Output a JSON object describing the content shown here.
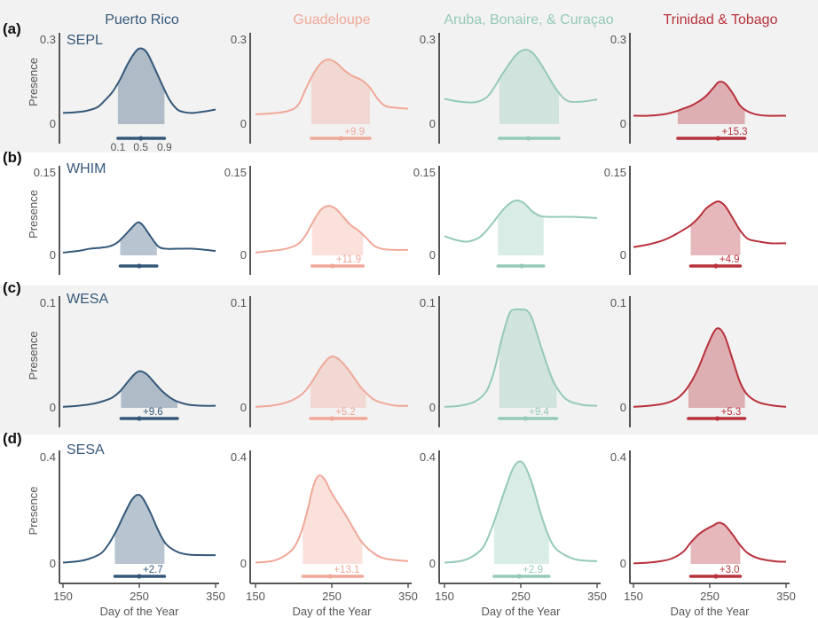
{
  "colors": {
    "PR": "#35587a",
    "GU": "#f0a898",
    "ABC": "#95c9b8",
    "TT": "#b8323c",
    "axis": "#555555",
    "band": "#f2f2f2"
  },
  "columns": [
    {
      "key": "PR",
      "title": "Puerto Rico"
    },
    {
      "key": "GU",
      "title": "Guadeloupe"
    },
    {
      "key": "ABC",
      "title": "Aruba, Bonaire, & Curaçao"
    },
    {
      "key": "TT",
      "title": "Trinidad & Tobago"
    }
  ],
  "panel_letters": [
    "(a)",
    "(b)",
    "(c)",
    "(d)"
  ],
  "species": [
    "SEPL",
    "WHIM",
    "WESA",
    "SESA"
  ],
  "y_axis_label": "Presence",
  "x_axis_label": "Day of the Year",
  "x_ticks": [
    "150",
    "250",
    "350"
  ],
  "quantile_labels": [
    "0.1",
    "0.5",
    "0.9"
  ],
  "chart_data": {
    "type": "area",
    "xlim": [
      150,
      350
    ],
    "xticks": [
      150,
      250,
      350
    ],
    "rows": [
      {
        "species": "SEPL",
        "ymax": 0.3,
        "ytick_labels": [
          "0.3",
          "0"
        ],
        "panels": [
          {
            "col": "PR",
            "x": [
              150,
              165,
              180,
              195,
              205,
              215,
              225,
              235,
              245,
              252,
              260,
              270,
              280,
              290,
              300,
              310,
              320,
              335,
              350
            ],
            "y": [
              0.04,
              0.042,
              0.047,
              0.06,
              0.085,
              0.115,
              0.16,
              0.215,
              0.258,
              0.27,
              0.255,
              0.2,
              0.14,
              0.085,
              0.052,
              0.042,
              0.04,
              0.045,
              0.052
            ],
            "q10": 222,
            "median": 252,
            "q90": 283,
            "shift": ""
          },
          {
            "col": "GU",
            "x": [
              150,
              170,
              190,
              205,
              215,
              225,
              235,
              245,
              255,
              265,
              275,
              290,
              300,
              310,
              320,
              335,
              350
            ],
            "y": [
              0.035,
              0.038,
              0.045,
              0.065,
              0.12,
              0.175,
              0.215,
              0.23,
              0.22,
              0.195,
              0.175,
              0.155,
              0.13,
              0.09,
              0.065,
              0.058,
              0.055
            ],
            "q10": 223,
            "median": 262,
            "q90": 300,
            "shift": "+9.9"
          },
          {
            "col": "ABC",
            "x": [
              150,
              170,
              190,
              205,
              215,
              225,
              235,
              245,
              255,
              265,
              275,
              285,
              295,
              305,
              315,
              330,
              350
            ],
            "y": [
              0.09,
              0.08,
              0.078,
              0.095,
              0.13,
              0.175,
              0.215,
              0.25,
              0.265,
              0.255,
              0.22,
              0.175,
              0.13,
              0.095,
              0.08,
              0.08,
              0.088
            ],
            "q10": 222,
            "median": 260,
            "q90": 300,
            "shift": ""
          },
          {
            "col": "TT",
            "x": [
              150,
              170,
              190,
              205,
              215,
              225,
              235,
              245,
              255,
              262,
              270,
              280,
              290,
              300,
              310,
              325,
              350
            ],
            "y": [
              0.03,
              0.03,
              0.035,
              0.045,
              0.055,
              0.065,
              0.08,
              0.1,
              0.13,
              0.15,
              0.145,
              0.11,
              0.065,
              0.045,
              0.035,
              0.03,
              0.03
            ],
            "q10": 208,
            "median": 261,
            "q90": 296,
            "shift": "+15.3"
          }
        ]
      },
      {
        "species": "WHIM",
        "ymax": 0.15,
        "ytick_labels": [
          "0.15",
          "0"
        ],
        "panels": [
          {
            "col": "PR",
            "x": [
              150,
              170,
              185,
              200,
              210,
              220,
              230,
              240,
              248,
              255,
              265,
              275,
              285,
              300,
              320,
              350
            ],
            "y": [
              0.005,
              0.008,
              0.012,
              0.014,
              0.016,
              0.022,
              0.035,
              0.05,
              0.06,
              0.054,
              0.034,
              0.016,
              0.012,
              0.012,
              0.012,
              0.008
            ],
            "q10": 225,
            "median": 250,
            "q90": 273,
            "shift": ""
          },
          {
            "col": "GU",
            "x": [
              150,
              170,
              190,
              205,
              215,
              225,
              235,
              245,
              255,
              265,
              275,
              285,
              295,
              305,
              315,
              330,
              350
            ],
            "y": [
              0.005,
              0.008,
              0.012,
              0.02,
              0.035,
              0.06,
              0.082,
              0.09,
              0.085,
              0.07,
              0.055,
              0.045,
              0.032,
              0.018,
              0.012,
              0.01,
              0.01
            ],
            "q10": 224,
            "median": 251,
            "q90": 291,
            "shift": "+11.9"
          },
          {
            "col": "ABC",
            "x": [
              150,
              165,
              180,
              195,
              205,
              215,
              225,
              235,
              245,
              255,
              265,
              275,
              285,
              300,
              320,
              350
            ],
            "y": [
              0.035,
              0.028,
              0.025,
              0.032,
              0.045,
              0.062,
              0.08,
              0.094,
              0.1,
              0.094,
              0.08,
              0.072,
              0.07,
              0.07,
              0.07,
              0.068
            ],
            "q10": 220,
            "median": 251,
            "q90": 280,
            "shift": ""
          },
          {
            "col": "TT",
            "x": [
              150,
              170,
              190,
              205,
              215,
              225,
              235,
              245,
              255,
              262,
              270,
              280,
              290,
              300,
              315,
              330,
              350
            ],
            "y": [
              0.015,
              0.02,
              0.028,
              0.038,
              0.046,
              0.055,
              0.068,
              0.085,
              0.095,
              0.098,
              0.09,
              0.068,
              0.045,
              0.03,
              0.025,
              0.022,
              0.022
            ],
            "q10": 225,
            "median": 258,
            "q90": 290,
            "shift": "+4.9"
          }
        ]
      },
      {
        "species": "WESA",
        "ymax": 0.1,
        "ytick_labels": [
          "0.1",
          "0"
        ],
        "panels": [
          {
            "col": "PR",
            "x": [
              150,
              170,
              190,
              205,
              215,
              225,
              235,
              245,
              252,
              260,
              270,
              280,
              290,
              300,
              315,
              335,
              350
            ],
            "y": [
              0.001,
              0.002,
              0.004,
              0.007,
              0.01,
              0.016,
              0.025,
              0.033,
              0.035,
              0.032,
              0.024,
              0.016,
              0.01,
              0.006,
              0.003,
              0.002,
              0.002
            ],
            "q10": 226,
            "median": 250,
            "q90": 300,
            "shift": "+9.6"
          },
          {
            "col": "GU",
            "x": [
              150,
              170,
              190,
              205,
              215,
              225,
              235,
              245,
              252,
              260,
              270,
              280,
              290,
              305,
              320,
              335,
              350
            ],
            "y": [
              0.001,
              0.002,
              0.005,
              0.01,
              0.016,
              0.026,
              0.038,
              0.047,
              0.049,
              0.046,
              0.038,
              0.028,
              0.018,
              0.008,
              0.004,
              0.002,
              0.002
            ],
            "q10": 222,
            "median": 250,
            "q90": 295,
            "shift": "+5.2"
          },
          {
            "col": "ABC",
            "x": [
              150,
              170,
              190,
              205,
              215,
              225,
              235,
              242,
              250,
              258,
              265,
              275,
              285,
              295,
              310,
              330,
              350
            ],
            "y": [
              0.001,
              0.002,
              0.006,
              0.016,
              0.035,
              0.066,
              0.09,
              0.094,
              0.094,
              0.093,
              0.085,
              0.062,
              0.04,
              0.022,
              0.008,
              0.003,
              0.002
            ],
            "q10": 222,
            "median": 256,
            "q90": 297,
            "shift": "+9.4"
          },
          {
            "col": "TT",
            "x": [
              150,
              170,
              190,
              205,
              215,
              225,
              235,
              245,
              255,
              262,
              270,
              280,
              290,
              300,
              315,
              335,
              350
            ],
            "y": [
              0.001,
              0.002,
              0.004,
              0.008,
              0.014,
              0.024,
              0.038,
              0.056,
              0.072,
              0.076,
              0.068,
              0.046,
              0.024,
              0.012,
              0.005,
              0.002,
              0.001
            ],
            "q10": 222,
            "median": 260,
            "q90": 296,
            "shift": "+5.3"
          }
        ]
      },
      {
        "species": "SESA",
        "ymax": 0.4,
        "ytick_labels": [
          "0.4",
          "0"
        ],
        "panels": [
          {
            "col": "PR",
            "x": [
              150,
              170,
              185,
              200,
              210,
              220,
              230,
              240,
              248,
              255,
              265,
              275,
              285,
              300,
              315,
              335,
              350
            ],
            "y": [
              0.005,
              0.01,
              0.02,
              0.04,
              0.075,
              0.125,
              0.185,
              0.24,
              0.26,
              0.245,
              0.19,
              0.125,
              0.075,
              0.045,
              0.035,
              0.033,
              0.033
            ],
            "q10": 218,
            "median": 250,
            "q90": 283,
            "shift": "+2.7"
          },
          {
            "col": "GU",
            "x": [
              150,
              170,
              185,
              200,
              210,
              218,
              225,
              232,
              240,
              250,
              260,
              270,
              280,
              290,
              305,
              320,
              350
            ],
            "y": [
              0.005,
              0.01,
              0.025,
              0.06,
              0.12,
              0.2,
              0.285,
              0.33,
              0.32,
              0.265,
              0.22,
              0.175,
              0.125,
              0.08,
              0.04,
              0.02,
              0.01
            ],
            "q10": 212,
            "median": 248,
            "q90": 290,
            "shift": "+13.1"
          },
          {
            "col": "ABC",
            "x": [
              150,
              170,
              185,
              200,
              210,
              220,
              230,
              240,
              248,
              255,
              265,
              275,
              285,
              295,
              310,
              325,
              350
            ],
            "y": [
              0.005,
              0.01,
              0.025,
              0.06,
              0.12,
              0.2,
              0.285,
              0.36,
              0.385,
              0.37,
              0.3,
              0.2,
              0.115,
              0.06,
              0.03,
              0.015,
              0.01
            ],
            "q10": 215,
            "median": 248,
            "q90": 287,
            "shift": "+2.9"
          },
          {
            "col": "TT",
            "x": [
              150,
              170,
              185,
              200,
              215,
              225,
              235,
              245,
              255,
              262,
              270,
              280,
              290,
              300,
              315,
              335,
              350
            ],
            "y": [
              0.002,
              0.005,
              0.01,
              0.02,
              0.045,
              0.08,
              0.11,
              0.13,
              0.145,
              0.155,
              0.145,
              0.11,
              0.07,
              0.04,
              0.02,
              0.01,
              0.008
            ],
            "q10": 225,
            "median": 258,
            "q90": 290,
            "shift": "+3.0"
          }
        ]
      }
    ]
  }
}
